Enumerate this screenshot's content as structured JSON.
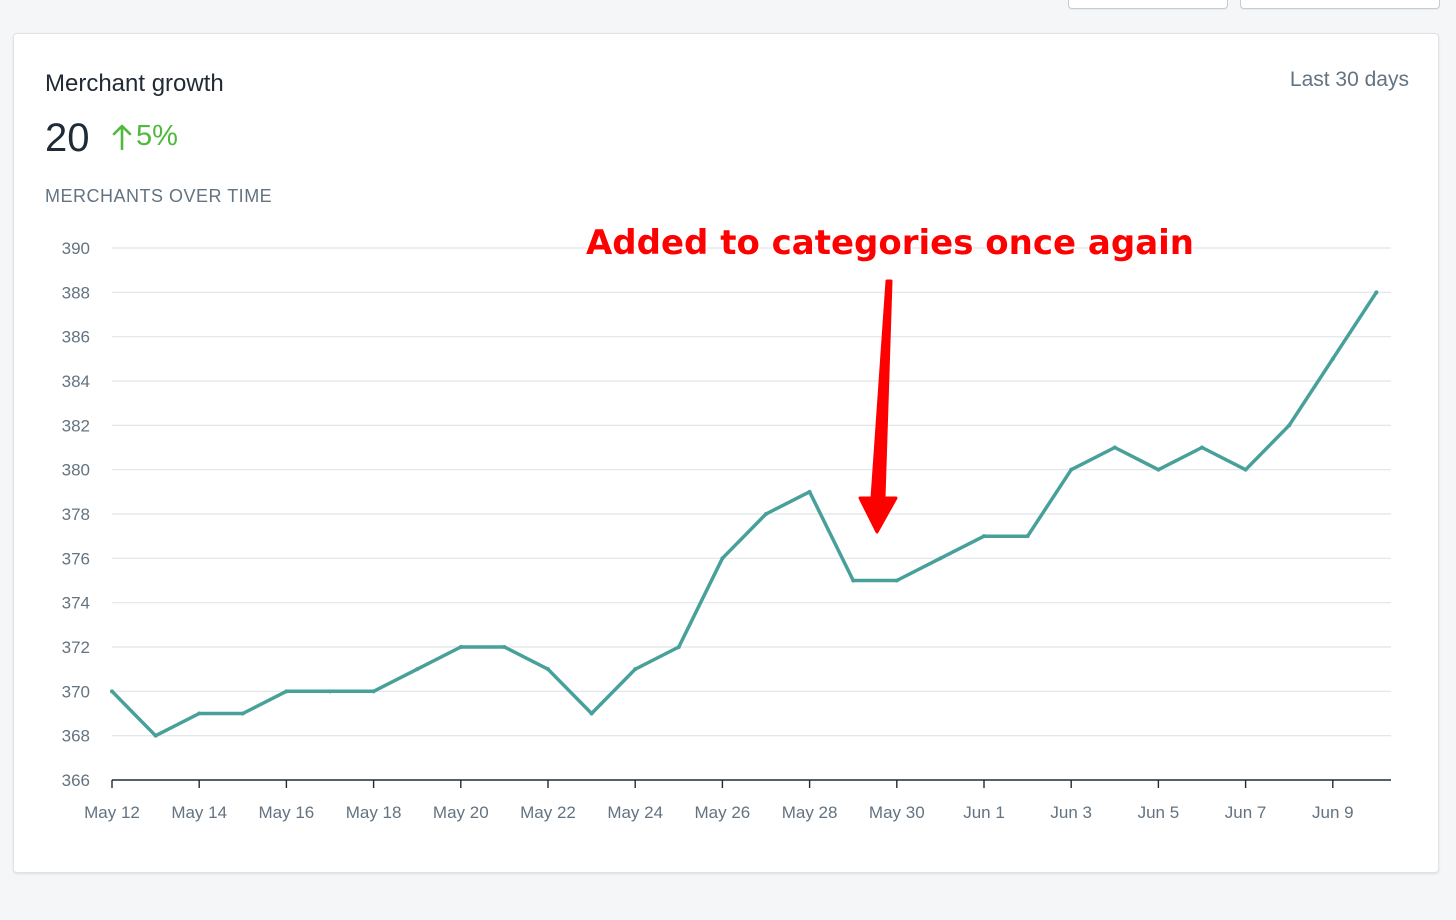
{
  "header": {
    "card_title": "Merchant growth",
    "period": "Last 30 days",
    "metric_value": "20",
    "metric_delta": "5%",
    "delta_icon": "arrow-up-icon",
    "chart_subtitle": "MERCHANTS OVER TIME"
  },
  "colors": {
    "line": "#47a09a",
    "grid": "#e0e4e8",
    "axis": "#212b36",
    "positive": "#50b83c",
    "annotation": "#ff0000"
  },
  "chart_data": {
    "type": "line",
    "title": "",
    "xlabel": "",
    "ylabel": "",
    "x": [
      "May 12",
      "May 13",
      "May 14",
      "May 15",
      "May 16",
      "May 17",
      "May 18",
      "May 19",
      "May 20",
      "May 21",
      "May 22",
      "May 23",
      "May 24",
      "May 25",
      "May 26",
      "May 27",
      "May 28",
      "May 29",
      "May 30",
      "May 31",
      "Jun 1",
      "Jun 2",
      "Jun 3",
      "Jun 4",
      "Jun 5",
      "Jun 6",
      "Jun 7",
      "Jun 8",
      "Jun 9",
      "Jun 10"
    ],
    "values": [
      370,
      368,
      369,
      369,
      370,
      370,
      370,
      371,
      372,
      372,
      371,
      369,
      371,
      372,
      376,
      378,
      379,
      375,
      375,
      376,
      377,
      377,
      380,
      381,
      380,
      381,
      380,
      382,
      385,
      388
    ],
    "x_tick_labels": [
      "May 12",
      "May 14",
      "May 16",
      "May 18",
      "May 20",
      "May 22",
      "May 24",
      "May 26",
      "May 28",
      "May 30",
      "Jun 1",
      "Jun 3",
      "Jun 5",
      "Jun 7",
      "Jun 9"
    ],
    "y_ticks": [
      366,
      368,
      370,
      372,
      374,
      376,
      378,
      380,
      382,
      384,
      386,
      388,
      390
    ],
    "ylim": [
      366,
      390
    ],
    "grid": true,
    "legend": "none",
    "annotation": {
      "text": "Added to categories once again",
      "points_to": "May 30",
      "color": "#ff0000"
    }
  }
}
